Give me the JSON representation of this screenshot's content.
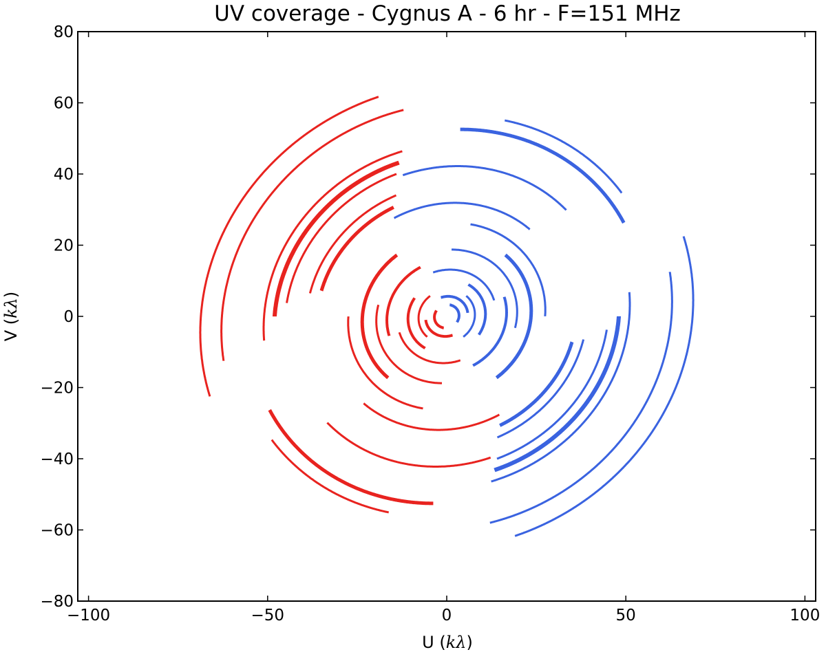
{
  "chart_data": {
    "type": "scatter",
    "title": "UV coverage - Cygnus A - 6 hr - F=151 MHz",
    "xlabel": "U",
    "xlabel_unit": "kλ",
    "ylabel": "V",
    "ylabel_unit": "kλ",
    "xlim": [
      -103,
      103
    ],
    "ylim": [
      -80,
      80
    ],
    "xticks": [
      -100,
      -50,
      0,
      50,
      100
    ],
    "yticks": [
      -80,
      -60,
      -40,
      -20,
      0,
      20,
      40,
      60,
      80
    ],
    "xtick_labels": [
      "−100",
      "−50",
      "0",
      "50",
      "100"
    ],
    "ytick_labels": [
      "−80",
      "−60",
      "−40",
      "−20",
      "0",
      "20",
      "40",
      "60",
      "80"
    ],
    "grid": false,
    "tilt_deg": 28,
    "ellipse_axis_ratio": 0.92,
    "series": [
      {
        "color": "#e8231f",
        "arcs": [
          {
            "r": 70,
            "a0": 80,
            "a1": 170,
            "w": 3
          },
          {
            "r": 52,
            "a0": 78,
            "a1": 158,
            "w": 3
          },
          {
            "r": 49,
            "a0": 80,
            "a1": 150,
            "w": 6
          },
          {
            "r": 46,
            "a0": 82,
            "a1": 145,
            "w": 3
          },
          {
            "r": 40,
            "a0": 85,
            "a1": 140,
            "w": 3
          },
          {
            "r": 37,
            "a0": 88,
            "a1": 138,
            "w": 5
          },
          {
            "r": 64,
            "a0": 75,
            "a1": 162,
            "w": 3
          },
          {
            "r": 34,
            "a0": 200,
            "a1": 270,
            "w": 3
          },
          {
            "r": 45,
            "a0": 195,
            "a1": 260,
            "w": 3
          },
          {
            "r": 56,
            "a0": 180,
            "a1": 240,
            "w": 5
          },
          {
            "r": 60,
            "a0": 188,
            "a1": 228,
            "w": 3
          },
          {
            "r": 28,
            "a0": 150,
            "a1": 230,
            "w": 3
          },
          {
            "r": 24,
            "a0": 100,
            "a1": 200,
            "w": 5
          },
          {
            "r": 20,
            "a0": 140,
            "a1": 240,
            "w": 3
          },
          {
            "r": 17,
            "a0": 90,
            "a1": 170,
            "w": 4
          },
          {
            "r": 14,
            "a0": 170,
            "a1": 260,
            "w": 3
          },
          {
            "r": 11,
            "a0": 120,
            "a1": 210,
            "w": 4
          },
          {
            "r": 8,
            "a0": 100,
            "a1": 200,
            "w": 3
          },
          {
            "r": 6,
            "a0": 160,
            "a1": 260,
            "w": 4
          },
          {
            "r": 3.5,
            "a0": 120,
            "a1": 230,
            "w": 4
          }
        ]
      },
      {
        "color": "#3a63e0",
        "arcs": [
          {
            "r": 70,
            "a0": 260,
            "a1": 350,
            "w": 3
          },
          {
            "r": 52,
            "a0": 258,
            "a1": 338,
            "w": 3
          },
          {
            "r": 49,
            "a0": 260,
            "a1": 330,
            "w": 6
          },
          {
            "r": 46,
            "a0": 262,
            "a1": 325,
            "w": 3
          },
          {
            "r": 40,
            "a0": 265,
            "a1": 320,
            "w": 3
          },
          {
            "r": 37,
            "a0": 268,
            "a1": 318,
            "w": 5
          },
          {
            "r": 64,
            "a0": 255,
            "a1": 342,
            "w": 3
          },
          {
            "r": 34,
            "a0": 20,
            "a1": 90,
            "w": 3
          },
          {
            "r": 45,
            "a0": 15,
            "a1": 80,
            "w": 3
          },
          {
            "r": 56,
            "a0": 0,
            "a1": 60,
            "w": 5
          },
          {
            "r": 60,
            "a0": 8,
            "a1": 48,
            "w": 3
          },
          {
            "r": 28,
            "a0": 330,
            "a1": 410,
            "w": 3
          },
          {
            "r": 24,
            "a0": 280,
            "a1": 380,
            "w": 5
          },
          {
            "r": 20,
            "a0": 320,
            "a1": 420,
            "w": 3
          },
          {
            "r": 17,
            "a0": 270,
            "a1": 350,
            "w": 4
          },
          {
            "r": 14,
            "a0": 350,
            "a1": 440,
            "w": 3
          },
          {
            "r": 11,
            "a0": 300,
            "a1": 390,
            "w": 4
          },
          {
            "r": 8,
            "a0": 280,
            "a1": 380,
            "w": 3
          },
          {
            "r": 6,
            "a0": 340,
            "a1": 440,
            "w": 4
          },
          {
            "r": 3.5,
            "a0": 300,
            "a1": 410,
            "w": 4
          }
        ]
      }
    ]
  }
}
